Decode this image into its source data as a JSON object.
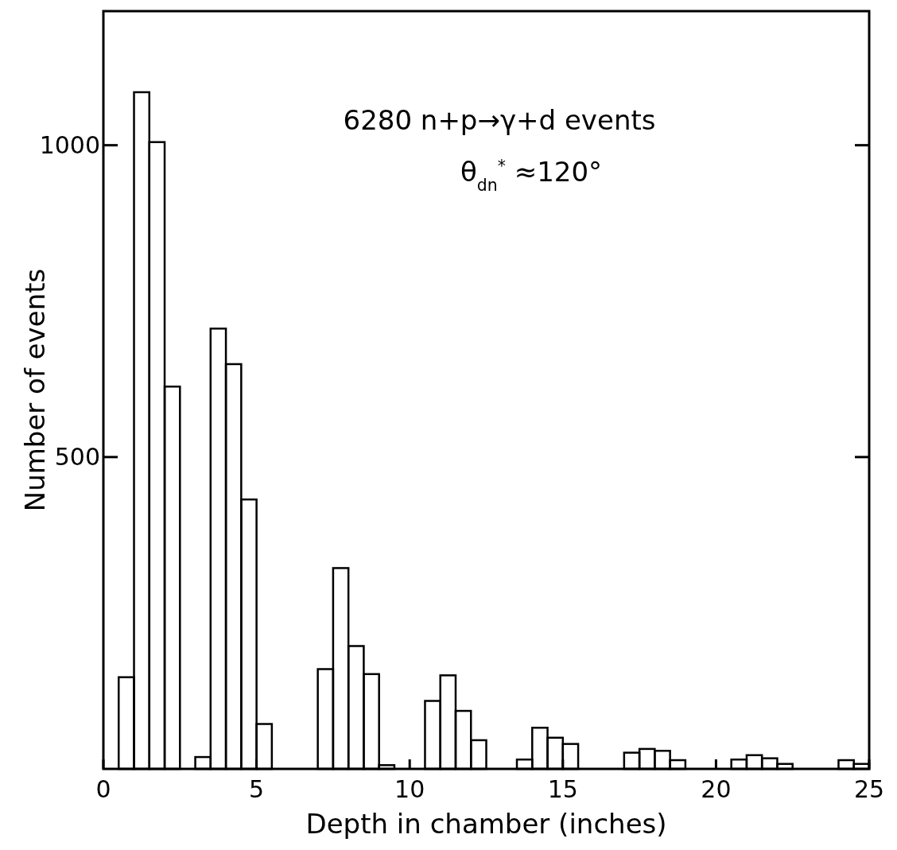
{
  "chart_data": {
    "type": "histogram",
    "xlabel": "Depth in chamber (inches)",
    "ylabel": "Number of events",
    "bins": [
      0.5,
      1,
      1.5,
      2,
      2.5,
      3,
      3.5,
      4,
      4.5,
      5,
      5.5,
      6,
      6.5,
      7,
      7.5,
      8,
      8.5,
      9,
      9.5,
      10,
      10.5,
      11,
      11.5,
      12,
      12.5,
      13,
      13.5,
      14,
      14.5,
      15,
      15.5,
      16,
      16.5,
      17,
      17.5,
      18,
      18.5,
      19,
      19.5,
      20,
      20.5,
      21,
      21.5,
      22,
      22.5,
      23,
      23.5,
      24,
      24.5,
      25
    ],
    "values": [
      147,
      1085,
      1005,
      613,
      0,
      19,
      706,
      649,
      432,
      72,
      0,
      0,
      0,
      160,
      322,
      197,
      152,
      6,
      0,
      0,
      109,
      150,
      93,
      46,
      0,
      0,
      15,
      66,
      50,
      40,
      0,
      0,
      0,
      26,
      32,
      29,
      14,
      0,
      0,
      0,
      15,
      22,
      17,
      8,
      0,
      0,
      0,
      14,
      8
    ],
    "color": "#000000",
    "xlim": [
      0,
      25
    ],
    "xticks": [
      0,
      5,
      10,
      15,
      20,
      25
    ],
    "ylim": [
      0,
      1215
    ],
    "yticks": [
      500,
      1000
    ],
    "annotations": [
      "6280 n+p→γ+d  events",
      "θ$_{dn}$$^{*}$ ≈120°"
    ]
  }
}
